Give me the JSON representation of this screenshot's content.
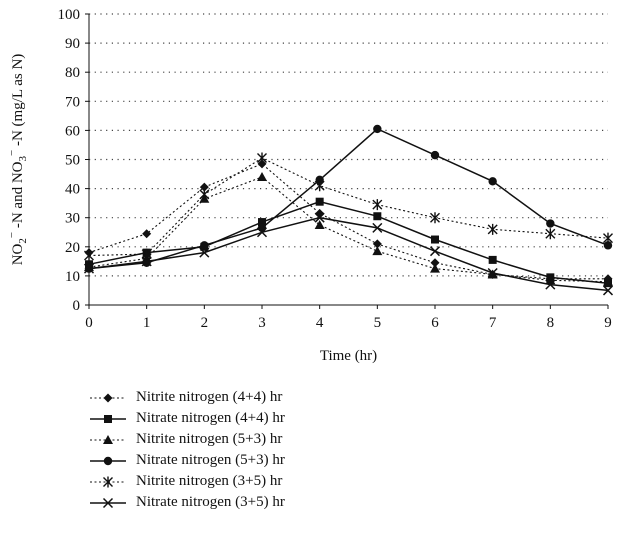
{
  "chart_data": {
    "type": "line",
    "xlabel": "Time (hr)",
    "ylabel_parts": [
      "NO",
      "2",
      "−",
      " -N and NO",
      "3",
      "−",
      " -N (mg/L as N)"
    ],
    "x": [
      0,
      1,
      2,
      3,
      4,
      5,
      6,
      7,
      8,
      9
    ],
    "xlim": [
      0,
      9
    ],
    "ylim": [
      0,
      100
    ],
    "yticks": [
      0,
      10,
      20,
      30,
      40,
      50,
      60,
      70,
      80,
      90,
      100
    ],
    "grid": "horizontal-dotted",
    "legend_position": "bottom",
    "series": [
      {
        "name": "Nitrite nitrogen (4+4) hr",
        "marker": "diamond",
        "dashed": true,
        "values": [
          18,
          24.5,
          40.5,
          48.5,
          31.5,
          21,
          14.5,
          10.5,
          9,
          9
        ]
      },
      {
        "name": "Nitrate nitrogen (4+4) hr",
        "marker": "square",
        "dashed": false,
        "values": [
          14,
          18,
          20,
          28.5,
          35.5,
          30.5,
          22.5,
          15.5,
          9.5,
          7.5
        ]
      },
      {
        "name": "Nitrite nitrogen (5+3) hr",
        "marker": "triangle",
        "dashed": true,
        "values": [
          13,
          16,
          36.5,
          44,
          27.5,
          18.5,
          12.5,
          10.5,
          8.5,
          8
        ]
      },
      {
        "name": "Nitrate nitrogen (5+3) hr",
        "marker": "circle",
        "dashed": false,
        "values": [
          12.5,
          14.5,
          20.5,
          26.5,
          43,
          60.5,
          51.5,
          42.5,
          28,
          20.5
        ]
      },
      {
        "name": "Nitrite nitrogen (3+5) hr",
        "marker": "asterisk",
        "dashed": true,
        "values": [
          17,
          17.5,
          38,
          50.5,
          41,
          34.5,
          30,
          26,
          24.5,
          23
        ]
      },
      {
        "name": "Nitrate nitrogen (3+5) hr",
        "marker": "x",
        "dashed": false,
        "values": [
          12.5,
          15,
          18,
          25,
          30,
          26.5,
          18.5,
          11,
          7,
          5
        ]
      }
    ]
  }
}
